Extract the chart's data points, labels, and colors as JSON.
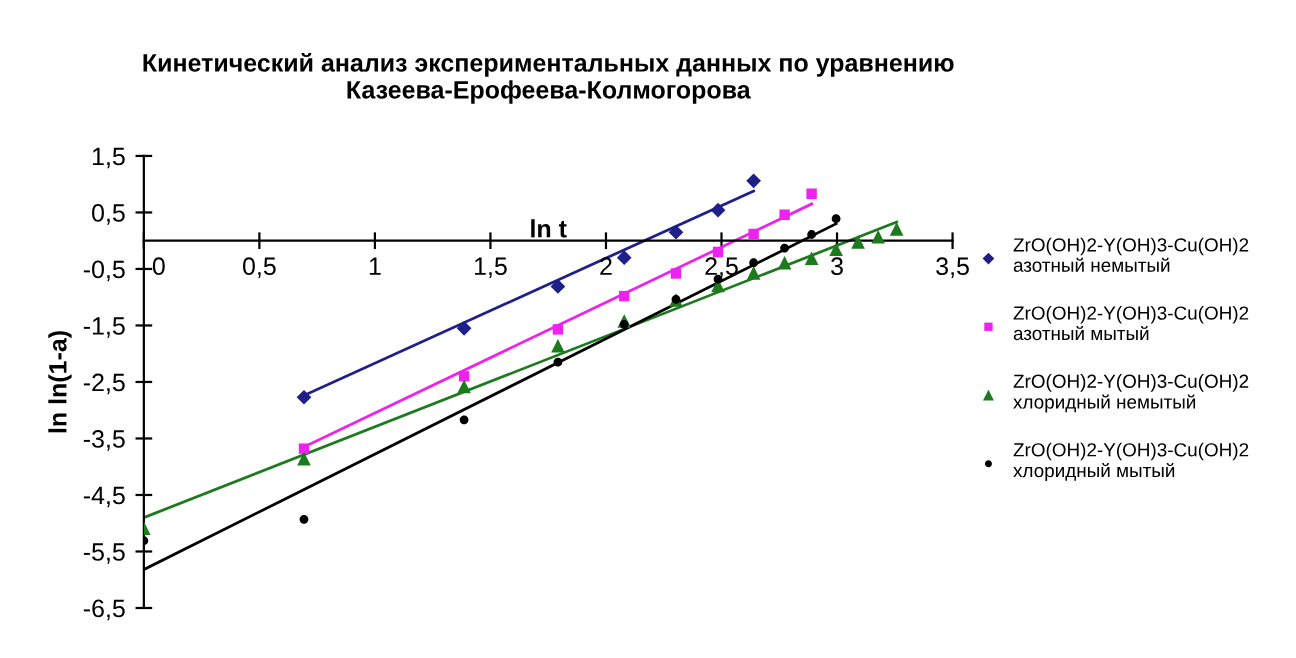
{
  "chart_data": {
    "type": "scatter",
    "title": "Кинетический анализ экспериментальных данных по уравнению Казеева-Ерофеева-Колмогорова",
    "xlabel": "ln t",
    "ylabel": "ln ln(1-a)",
    "xlim": [
      0,
      3.5
    ],
    "xticks": [
      {
        "value": 0,
        "label": "0"
      },
      {
        "value": 0.5,
        "label": "0,5"
      },
      {
        "value": 1,
        "label": "1"
      },
      {
        "value": 1.5,
        "label": "1,5"
      },
      {
        "value": 2,
        "label": "2"
      },
      {
        "value": 2.5,
        "label": "2,5"
      },
      {
        "value": 3,
        "label": "3"
      },
      {
        "value": 3.5,
        "label": "3,5"
      }
    ],
    "ylim": [
      -6.5,
      1.5
    ],
    "yticks": [
      {
        "value": -6.5,
        "label": "-6,5"
      },
      {
        "value": -5.5,
        "label": "-5,5"
      },
      {
        "value": -4.5,
        "label": "-4,5"
      },
      {
        "value": -3.5,
        "label": "-3,5"
      },
      {
        "value": -2.5,
        "label": "-2,5"
      },
      {
        "value": -1.5,
        "label": "-1,5"
      },
      {
        "value": -0.5,
        "label": "-0,5"
      },
      {
        "value": 0.5,
        "label": "0,5"
      },
      {
        "value": 1.5,
        "label": "1,5"
      }
    ],
    "grid": false,
    "legend": "right",
    "series": [
      {
        "name": "ZrO(OH)2-Y(OH)3-Cu(OH)2\nазотный немытый",
        "color": "#1f1f8a",
        "marker": "diamond",
        "x": [
          0.693,
          1.386,
          1.792,
          2.079,
          2.303,
          2.485,
          2.639
        ],
        "values": [
          -2.77,
          -1.55,
          -0.81,
          -0.3,
          0.15,
          0.54,
          1.06
        ]
      },
      {
        "name": "ZrO(OH)2-Y(OH)3-Cu(OH)2\nазотный мытый",
        "color": "#ee22ee",
        "marker": "square",
        "x": [
          0.693,
          1.386,
          1.792,
          2.079,
          2.303,
          2.485,
          2.639,
          2.773,
          2.89
        ],
        "values": [
          -3.68,
          -2.4,
          -1.57,
          -0.98,
          -0.58,
          -0.2,
          0.12,
          0.46,
          0.83
        ]
      },
      {
        "name": "ZrO(OH)2-Y(OH)3-Cu(OH)2\nхлоридный немытый",
        "color": "#1e7a1e",
        "marker": "triangle",
        "x": [
          0,
          0.693,
          1.386,
          1.792,
          2.079,
          2.303,
          2.485,
          2.639,
          2.773,
          2.89,
          2.996,
          3.091,
          3.178,
          3.258
        ],
        "values": [
          -5.09,
          -3.86,
          -2.58,
          -1.86,
          -1.42,
          -1.05,
          -0.79,
          -0.57,
          -0.39,
          -0.31,
          -0.15,
          -0.02,
          0.07,
          0.21
        ]
      },
      {
        "name": "ZrO(OH)2-Y(OH)3-Cu(OH)2\nхлоридный мытый",
        "color": "#000000",
        "marker": "circle",
        "x": [
          0,
          0.693,
          1.386,
          1.792,
          2.079,
          2.303,
          2.485,
          2.639,
          2.773,
          2.89,
          2.996
        ],
        "values": [
          -5.31,
          -4.93,
          -3.17,
          -2.15,
          -1.48,
          -1.04,
          -0.68,
          -0.39,
          -0.13,
          0.11,
          0.39
        ]
      },
      {
        "type": "line",
        "color": "#1f1f8a",
        "marker": "none",
        "x": [
          0.693,
          2.639
        ],
        "values": [
          -2.74,
          0.88
        ]
      },
      {
        "type": "line",
        "color": "#ee22ee",
        "marker": "none",
        "x": [
          0.693,
          2.89
        ],
        "values": [
          -3.65,
          0.65
        ]
      },
      {
        "type": "line",
        "color": "#1e7a1e",
        "marker": "none",
        "x": [
          0,
          3.258
        ],
        "values": [
          -4.9,
          0.33
        ]
      },
      {
        "type": "line",
        "color": "#000000",
        "marker": "none",
        "x": [
          0,
          2.996
        ],
        "values": [
          -5.82,
          0.3
        ]
      }
    ]
  }
}
